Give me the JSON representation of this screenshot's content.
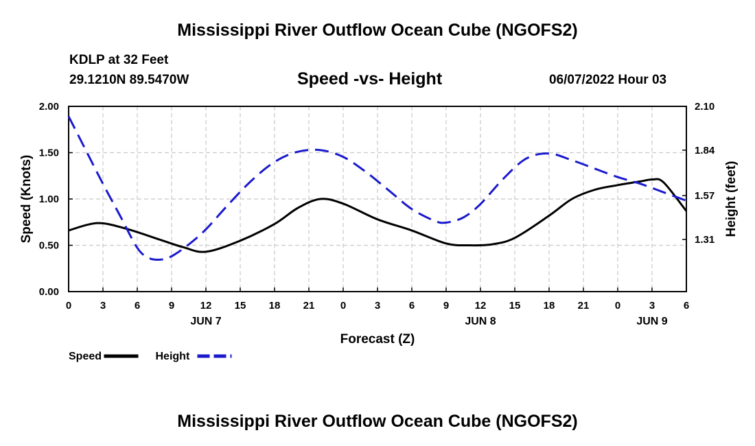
{
  "header": {
    "title": "Mississippi River Outflow Ocean Cube (NGOFS2)",
    "station": "KDLP at 32 Feet",
    "coords": "29.1210N  89.5470W",
    "subtitle": "Speed -vs- Height",
    "datetime": "06/07/2022 Hour 03"
  },
  "footer": {
    "title": "Mississippi River Outflow Ocean Cube (NGOFS2)"
  },
  "chart_data": {
    "type": "line",
    "title": "Speed -vs- Height",
    "xlabel": "Forecast (Z)",
    "ylabel": "Speed (Knots)",
    "y2label": "Height (feet)",
    "xlim": [
      0,
      54
    ],
    "ylim": [
      0,
      2.0
    ],
    "y2lim": [
      1.0,
      2.1
    ],
    "grid": true,
    "x_ticks": [
      {
        "x": 0,
        "label": "0"
      },
      {
        "x": 3,
        "label": "3"
      },
      {
        "x": 6,
        "label": "6"
      },
      {
        "x": 9,
        "label": "9"
      },
      {
        "x": 12,
        "label": "12"
      },
      {
        "x": 15,
        "label": "15"
      },
      {
        "x": 18,
        "label": "18"
      },
      {
        "x": 21,
        "label": "21"
      },
      {
        "x": 24,
        "label": "0"
      },
      {
        "x": 27,
        "label": "3"
      },
      {
        "x": 30,
        "label": "6"
      },
      {
        "x": 33,
        "label": "9"
      },
      {
        "x": 36,
        "label": "12"
      },
      {
        "x": 39,
        "label": "15"
      },
      {
        "x": 42,
        "label": "18"
      },
      {
        "x": 45,
        "label": "21"
      },
      {
        "x": 48,
        "label": "0"
      },
      {
        "x": 51,
        "label": "3"
      },
      {
        "x": 54,
        "label": "6"
      }
    ],
    "day_labels": [
      {
        "x": 12,
        "label": "JUN 7"
      },
      {
        "x": 36,
        "label": "JUN 8"
      },
      {
        "x": 51,
        "label": "JUN 9"
      }
    ],
    "y_ticks": [
      {
        "v": 0,
        "label": "0.00"
      },
      {
        "v": 0.5,
        "label": "0.50"
      },
      {
        "v": 1.0,
        "label": "1.00"
      },
      {
        "v": 1.5,
        "label": "1.50"
      },
      {
        "v": 2.0,
        "label": "2.00"
      }
    ],
    "y2_ticks": [
      {
        "v": 1.31,
        "label": "1.31"
      },
      {
        "v": 1.57,
        "label": "1.57"
      },
      {
        "v": 1.84,
        "label": "1.84"
      },
      {
        "v": 2.1,
        "label": "2.10"
      }
    ],
    "series": [
      {
        "name": "Speed",
        "color": "#000000",
        "axis": "left",
        "dash": false,
        "x": [
          0,
          2.5,
          5,
          8,
          10,
          12,
          15,
          18,
          20,
          22,
          24,
          27,
          30,
          33,
          35,
          37,
          39,
          42,
          44,
          46,
          48,
          50,
          51,
          52,
          54
        ],
        "values": [
          0.66,
          0.74,
          0.68,
          0.56,
          0.48,
          0.43,
          0.55,
          0.73,
          0.9,
          1.0,
          0.95,
          0.78,
          0.66,
          0.52,
          0.5,
          0.51,
          0.58,
          0.82,
          1.0,
          1.1,
          1.15,
          1.19,
          1.21,
          1.18,
          0.87
        ]
      },
      {
        "name": "Height",
        "color": "#1a1acd",
        "axis": "right",
        "dash": true,
        "x": [
          0,
          1.5,
          3,
          4.5,
          6,
          7,
          8,
          9,
          10.5,
          12,
          14,
          16,
          18,
          20,
          22,
          24,
          26,
          28,
          30,
          32,
          33,
          34.5,
          36,
          38,
          40,
          42,
          44,
          46,
          48,
          50,
          52,
          54
        ],
        "values": [
          2.04,
          1.84,
          1.64,
          1.45,
          1.26,
          1.2,
          1.19,
          1.21,
          1.28,
          1.37,
          1.52,
          1.66,
          1.77,
          1.83,
          1.84,
          1.8,
          1.71,
          1.6,
          1.49,
          1.42,
          1.41,
          1.44,
          1.52,
          1.67,
          1.79,
          1.82,
          1.78,
          1.73,
          1.68,
          1.64,
          1.59,
          1.54
        ]
      }
    ],
    "legend": {
      "position": "bottom-left",
      "entries": [
        "Speed",
        "Height"
      ]
    }
  }
}
